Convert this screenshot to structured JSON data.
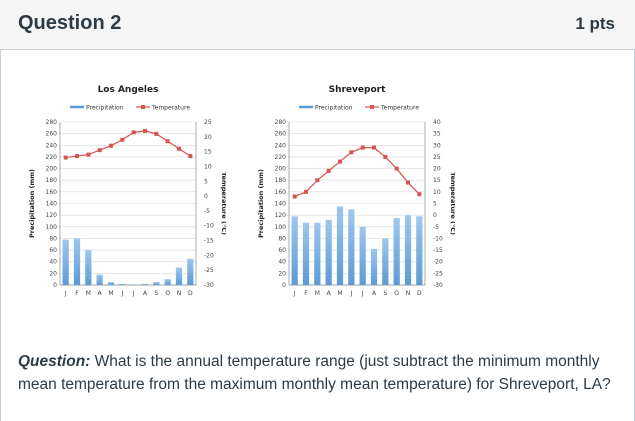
{
  "header": {
    "title": "Question 2",
    "points": "1 pts"
  },
  "colors": {
    "precip_bar": "#5b9bd5",
    "temp_line": "#d9534f",
    "grid": "#d9d9d9"
  },
  "question": {
    "label": "Question:",
    "text": " What is the annual temperature range (just subtract the minimum monthly mean temperature from the maximum monthly mean temperature) for Shreveport, LA?"
  },
  "chart_data": [
    {
      "type": "bar",
      "title": "Los Angeles",
      "categories": [
        "J",
        "F",
        "M",
        "A",
        "M",
        "J",
        "J",
        "A",
        "S",
        "O",
        "N",
        "D"
      ],
      "series": [
        {
          "name": "Precipitation",
          "type": "bar",
          "axis": "left",
          "values": [
            78,
            80,
            60,
            18,
            5,
            2,
            1,
            2,
            5,
            10,
            30,
            45
          ]
        },
        {
          "name": "Temperature",
          "type": "line",
          "axis": "right",
          "values": [
            13,
            13.5,
            14,
            15.5,
            17,
            19,
            21.5,
            22,
            21,
            18.5,
            16,
            13.5
          ]
        }
      ],
      "ylabel": "Precipitation (mm)",
      "ylabel_right": "Temperature (°C)",
      "ylim": [
        0,
        280
      ],
      "ylim_right": [
        -30,
        25
      ],
      "yticks": [
        "0",
        "20",
        "40",
        "60",
        "80",
        "100",
        "120",
        "140",
        "160",
        "180",
        "200",
        "220",
        "240",
        "260",
        "280"
      ],
      "yticks_right": [
        "-30",
        "-25",
        "-20",
        "-15",
        "-10",
        "-5",
        "0",
        "5",
        "10",
        "15",
        "20",
        "25"
      ],
      "legend": "top",
      "grid": true
    },
    {
      "type": "bar",
      "title": "Shreveport",
      "categories": [
        "J",
        "F",
        "M",
        "A",
        "M",
        "J",
        "J",
        "A",
        "S",
        "O",
        "N",
        "D"
      ],
      "series": [
        {
          "name": "Precipitation",
          "type": "bar",
          "axis": "left",
          "values": [
            118,
            107,
            107,
            112,
            135,
            130,
            100,
            62,
            80,
            115,
            120,
            118
          ]
        },
        {
          "name": "Temperature",
          "type": "line",
          "axis": "right",
          "values": [
            8,
            10,
            15,
            19,
            23,
            27,
            29,
            29,
            25,
            20,
            14,
            9
          ]
        }
      ],
      "ylabel": "Precipitation (mm)",
      "ylabel_right": "Temperature (°C)",
      "ylim": [
        0,
        280
      ],
      "ylim_right": [
        -30,
        40
      ],
      "yticks": [
        "0",
        "20",
        "40",
        "60",
        "80",
        "100",
        "120",
        "140",
        "160",
        "180",
        "200",
        "220",
        "240",
        "260",
        "280"
      ],
      "yticks_right": [
        "-30",
        "-25",
        "-20",
        "-15",
        "-10",
        "-5",
        "0",
        "5",
        "10",
        "15",
        "20",
        "25",
        "30",
        "35",
        "40"
      ],
      "legend": "top",
      "grid": true
    }
  ]
}
